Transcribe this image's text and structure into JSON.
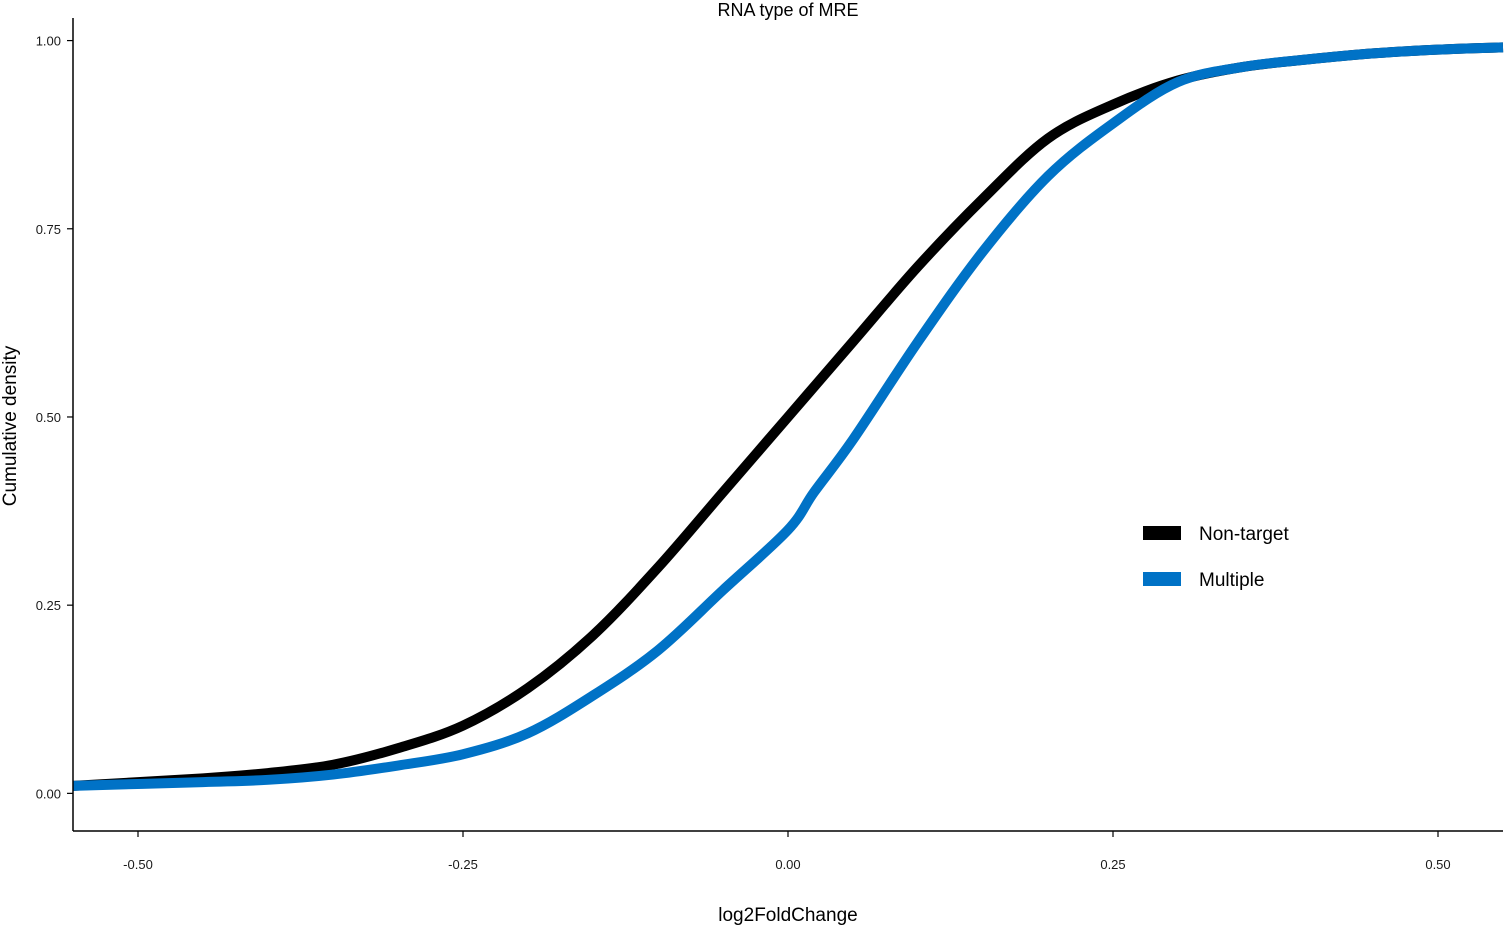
{
  "chart_data": {
    "type": "line",
    "title": "RNA type of MRE",
    "xlabel": "log2FoldChange",
    "ylabel": "Cumulative density",
    "xlim": [
      -0.55,
      0.55
    ],
    "ylim": [
      -0.05,
      1.03
    ],
    "x_ticks": [
      -0.5,
      -0.25,
      0,
      0.25,
      0.5
    ],
    "x_tick_labels": [
      "-0.50",
      "-0.25",
      "0.00",
      "0.25",
      "0.50"
    ],
    "y_ticks": [
      0,
      0.25,
      0.5,
      0.75,
      1
    ],
    "y_tick_labels": [
      "0.00",
      "0.25",
      "0.50",
      "0.75",
      "1.00"
    ],
    "grid": false,
    "legend": {
      "placement": "right-middle"
    },
    "series": [
      {
        "name": "Non-target",
        "color": "#000000",
        "points": [
          [
            -0.55,
            0.01
          ],
          [
            -0.45,
            0.02
          ],
          [
            -0.4,
            0.027
          ],
          [
            -0.35,
            0.038
          ],
          [
            -0.3,
            0.06
          ],
          [
            -0.25,
            0.09
          ],
          [
            -0.2,
            0.14
          ],
          [
            -0.15,
            0.21
          ],
          [
            -0.1,
            0.3
          ],
          [
            -0.05,
            0.4
          ],
          [
            0.0,
            0.5
          ],
          [
            0.05,
            0.6
          ],
          [
            0.1,
            0.7
          ],
          [
            0.15,
            0.79
          ],
          [
            0.2,
            0.87
          ],
          [
            0.25,
            0.915
          ],
          [
            0.3,
            0.947
          ],
          [
            0.35,
            0.965
          ],
          [
            0.4,
            0.975
          ],
          [
            0.45,
            0.983
          ],
          [
            0.5,
            0.988
          ],
          [
            0.55,
            0.991
          ]
        ]
      },
      {
        "name": "Multiple",
        "color": "#0072C6",
        "points": [
          [
            -0.55,
            0.01
          ],
          [
            -0.45,
            0.015
          ],
          [
            -0.4,
            0.018
          ],
          [
            -0.35,
            0.025
          ],
          [
            -0.3,
            0.037
          ],
          [
            -0.25,
            0.052
          ],
          [
            -0.2,
            0.08
          ],
          [
            -0.15,
            0.13
          ],
          [
            -0.1,
            0.19
          ],
          [
            -0.05,
            0.27
          ],
          [
            0.0,
            0.35
          ],
          [
            0.02,
            0.4
          ],
          [
            0.05,
            0.47
          ],
          [
            0.1,
            0.6
          ],
          [
            0.15,
            0.72
          ],
          [
            0.2,
            0.82
          ],
          [
            0.25,
            0.89
          ],
          [
            0.3,
            0.945
          ],
          [
            0.35,
            0.965
          ],
          [
            0.4,
            0.975
          ],
          [
            0.45,
            0.983
          ],
          [
            0.5,
            0.988
          ],
          [
            0.55,
            0.991
          ]
        ]
      }
    ]
  }
}
